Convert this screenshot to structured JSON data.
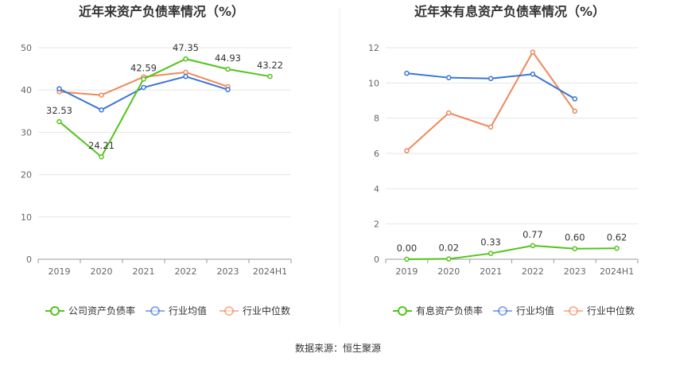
{
  "source_label": "数据来源：恒生聚源",
  "chart_data": [
    {
      "type": "line",
      "title": "近年来资产负债率情况（%）",
      "categories": [
        "2019",
        "2020",
        "2021",
        "2022",
        "2023",
        "2024H1"
      ],
      "ylim": [
        0,
        50
      ],
      "yticks": [
        0,
        10,
        20,
        30,
        40,
        50
      ],
      "grid": true,
      "legend_position": "bottom",
      "series": [
        {
          "name": "公司资产负债率",
          "color": "#52c41a",
          "show_labels": true,
          "values": [
            32.53,
            24.21,
            42.59,
            47.35,
            44.93,
            43.22
          ],
          "labels": [
            "32.53",
            "24.21",
            "42.59",
            "47.35",
            "44.93",
            "43.22"
          ]
        },
        {
          "name": "行业均值",
          "color": "#3a75d8",
          "show_labels": false,
          "values": [
            40.3,
            35.3,
            40.6,
            43.2,
            40.1,
            null
          ]
        },
        {
          "name": "行业中位数",
          "color": "#f0885a",
          "show_labels": false,
          "values": [
            39.6,
            38.8,
            43.1,
            44.2,
            40.8,
            null
          ]
        }
      ]
    },
    {
      "type": "line",
      "title": "近年来有息资产负债率情况（%）",
      "categories": [
        "2019",
        "2020",
        "2021",
        "2022",
        "2023",
        "2024H1"
      ],
      "ylim": [
        0,
        12
      ],
      "yticks": [
        0,
        2,
        4,
        6,
        8,
        10,
        12
      ],
      "grid": true,
      "legend_position": "bottom",
      "series": [
        {
          "name": "有息资产负债率",
          "color": "#52c41a",
          "show_labels": true,
          "values": [
            0.0,
            0.02,
            0.33,
            0.77,
            0.6,
            0.62
          ],
          "labels": [
            "0.00",
            "0.02",
            "0.33",
            "0.77",
            "0.60",
            "0.62"
          ]
        },
        {
          "name": "行业均值",
          "color": "#3a75d8",
          "show_labels": false,
          "values": [
            10.55,
            10.3,
            10.25,
            10.5,
            9.1,
            null
          ]
        },
        {
          "name": "行业中位数",
          "color": "#f0885a",
          "show_labels": false,
          "values": [
            6.15,
            8.3,
            7.5,
            11.75,
            8.4,
            null
          ]
        }
      ]
    }
  ]
}
